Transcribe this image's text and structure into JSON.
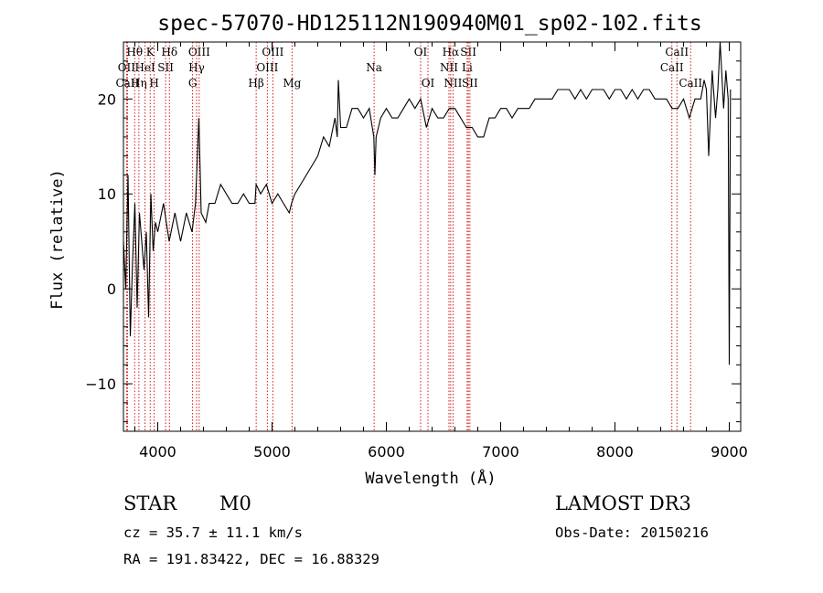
{
  "chart_data": {
    "type": "line",
    "title": "spec-57070-HD125112N190940M01_sp02-102.fits",
    "xlabel": "Wavelength (Å)",
    "ylabel": "Flux (relative)",
    "xlim": [
      3700,
      9100
    ],
    "ylim": [
      -15,
      26
    ],
    "xticks": [
      4000,
      5000,
      6000,
      7000,
      8000,
      9000
    ],
    "yticks": [
      -10,
      0,
      10,
      20
    ],
    "grid": false,
    "series": [
      {
        "name": "flux",
        "x": [
          3700,
          3720,
          3740,
          3760,
          3780,
          3800,
          3820,
          3840,
          3860,
          3880,
          3900,
          3920,
          3940,
          3960,
          3980,
          4000,
          4050,
          4100,
          4150,
          4200,
          4250,
          4300,
          4330,
          4340,
          4360,
          4380,
          4420,
          4450,
          4500,
          4550,
          4600,
          4650,
          4700,
          4750,
          4800,
          4850,
          4861,
          4900,
          4950,
          5000,
          5050,
          5100,
          5150,
          5170,
          5200,
          5250,
          5300,
          5350,
          5400,
          5450,
          5500,
          5550,
          5570,
          5580,
          5600,
          5650,
          5700,
          5750,
          5800,
          5850,
          5890,
          5900,
          5910,
          5950,
          6000,
          6050,
          6100,
          6150,
          6200,
          6250,
          6300,
          6350,
          6400,
          6450,
          6500,
          6550,
          6600,
          6650,
          6700,
          6750,
          6800,
          6850,
          6900,
          6950,
          7000,
          7050,
          7100,
          7150,
          7200,
          7250,
          7300,
          7350,
          7400,
          7450,
          7500,
          7550,
          7600,
          7650,
          7700,
          7750,
          7800,
          7850,
          7900,
          7950,
          8000,
          8050,
          8100,
          8150,
          8200,
          8250,
          8300,
          8350,
          8400,
          8450,
          8500,
          8550,
          8600,
          8650,
          8700,
          8750,
          8780,
          8800,
          8820,
          8850,
          8880,
          8900,
          8920,
          8950,
          8970,
          8990,
          9000,
          9010
        ],
        "y": [
          5,
          0,
          12,
          -5,
          3,
          9,
          -2,
          8,
          5,
          2,
          6,
          -3,
          10,
          4,
          7,
          6,
          9,
          5,
          8,
          5,
          8,
          6,
          9,
          12,
          18,
          8,
          7,
          9,
          9,
          11,
          10,
          9,
          9,
          10,
          9,
          9,
          11,
          10,
          11,
          9,
          10,
          9,
          8,
          9,
          10,
          11,
          12,
          13,
          14,
          16,
          15,
          18,
          16,
          22,
          17,
          17,
          19,
          19,
          18,
          19,
          16,
          12,
          16,
          18,
          19,
          18,
          18,
          19,
          20,
          19,
          20,
          17,
          19,
          18,
          18,
          19,
          19,
          18,
          17,
          17,
          16,
          16,
          18,
          18,
          19,
          19,
          18,
          19,
          19,
          19,
          20,
          20,
          20,
          20,
          21,
          21,
          21,
          20,
          21,
          20,
          21,
          21,
          21,
          20,
          21,
          21,
          20,
          21,
          20,
          21,
          21,
          20,
          20,
          20,
          19,
          19,
          20,
          18,
          20,
          20,
          22,
          21,
          14,
          23,
          18,
          21,
          26,
          19,
          23,
          20,
          -8,
          21
        ],
        "color": "#000000"
      }
    ],
    "lines": [
      {
        "label": "Hθ",
        "x": 3798,
        "row": 1
      },
      {
        "label": "OII",
        "x": 3727,
        "row": 2
      },
      {
        "label": "CaII",
        "x": 3735,
        "row": 3
      },
      {
        "label": "Hη",
        "x": 3835,
        "row": 3
      },
      {
        "label": "HeI",
        "x": 3889,
        "row": 2
      },
      {
        "label": "K",
        "x": 3934,
        "row": 1
      },
      {
        "label": "H",
        "x": 3969,
        "row": 3
      },
      {
        "label": "SII",
        "x": 4069,
        "row": 2
      },
      {
        "label": "Hδ",
        "x": 4102,
        "row": 1
      },
      {
        "label": "OIII",
        "x": 4363,
        "row": 1
      },
      {
        "label": "Hγ",
        "x": 4340,
        "row": 2
      },
      {
        "label": "G",
        "x": 4305,
        "row": 3
      },
      {
        "label": "Hβ",
        "x": 4861,
        "row": 3
      },
      {
        "label": "OIII",
        "x": 5007,
        "row": 1
      },
      {
        "label": "OIII",
        "x": 4959,
        "row": 2
      },
      {
        "label": "Mg",
        "x": 5175,
        "row": 3
      },
      {
        "label": "Na",
        "x": 5893,
        "row": 2
      },
      {
        "label": "OI",
        "x": 6300,
        "row": 1
      },
      {
        "label": "OI",
        "x": 6364,
        "row": 3
      },
      {
        "label": "Hα",
        "x": 6563,
        "row": 1
      },
      {
        "label": "NII",
        "x": 6548,
        "row": 2
      },
      {
        "label": "NII",
        "x": 6583,
        "row": 3
      },
      {
        "label": "SII",
        "x": 6717,
        "row": 1
      },
      {
        "label": "Li",
        "x": 6707,
        "row": 2
      },
      {
        "label": "SII",
        "x": 6731,
        "row": 3
      },
      {
        "label": "CaII",
        "x": 8542,
        "row": 1
      },
      {
        "label": "CaII",
        "x": 8498,
        "row": 2
      },
      {
        "label": "CaII",
        "x": 8662,
        "row": 3
      }
    ]
  },
  "info": {
    "object_class": "STAR",
    "subclass": "M0",
    "survey": "LAMOST DR3",
    "cz": "cz = 35.7 ± 11.1 km/s",
    "obs_date": "Obs-Date: 20150216",
    "coords": "RA = 191.83422, DEC =  16.88329"
  }
}
